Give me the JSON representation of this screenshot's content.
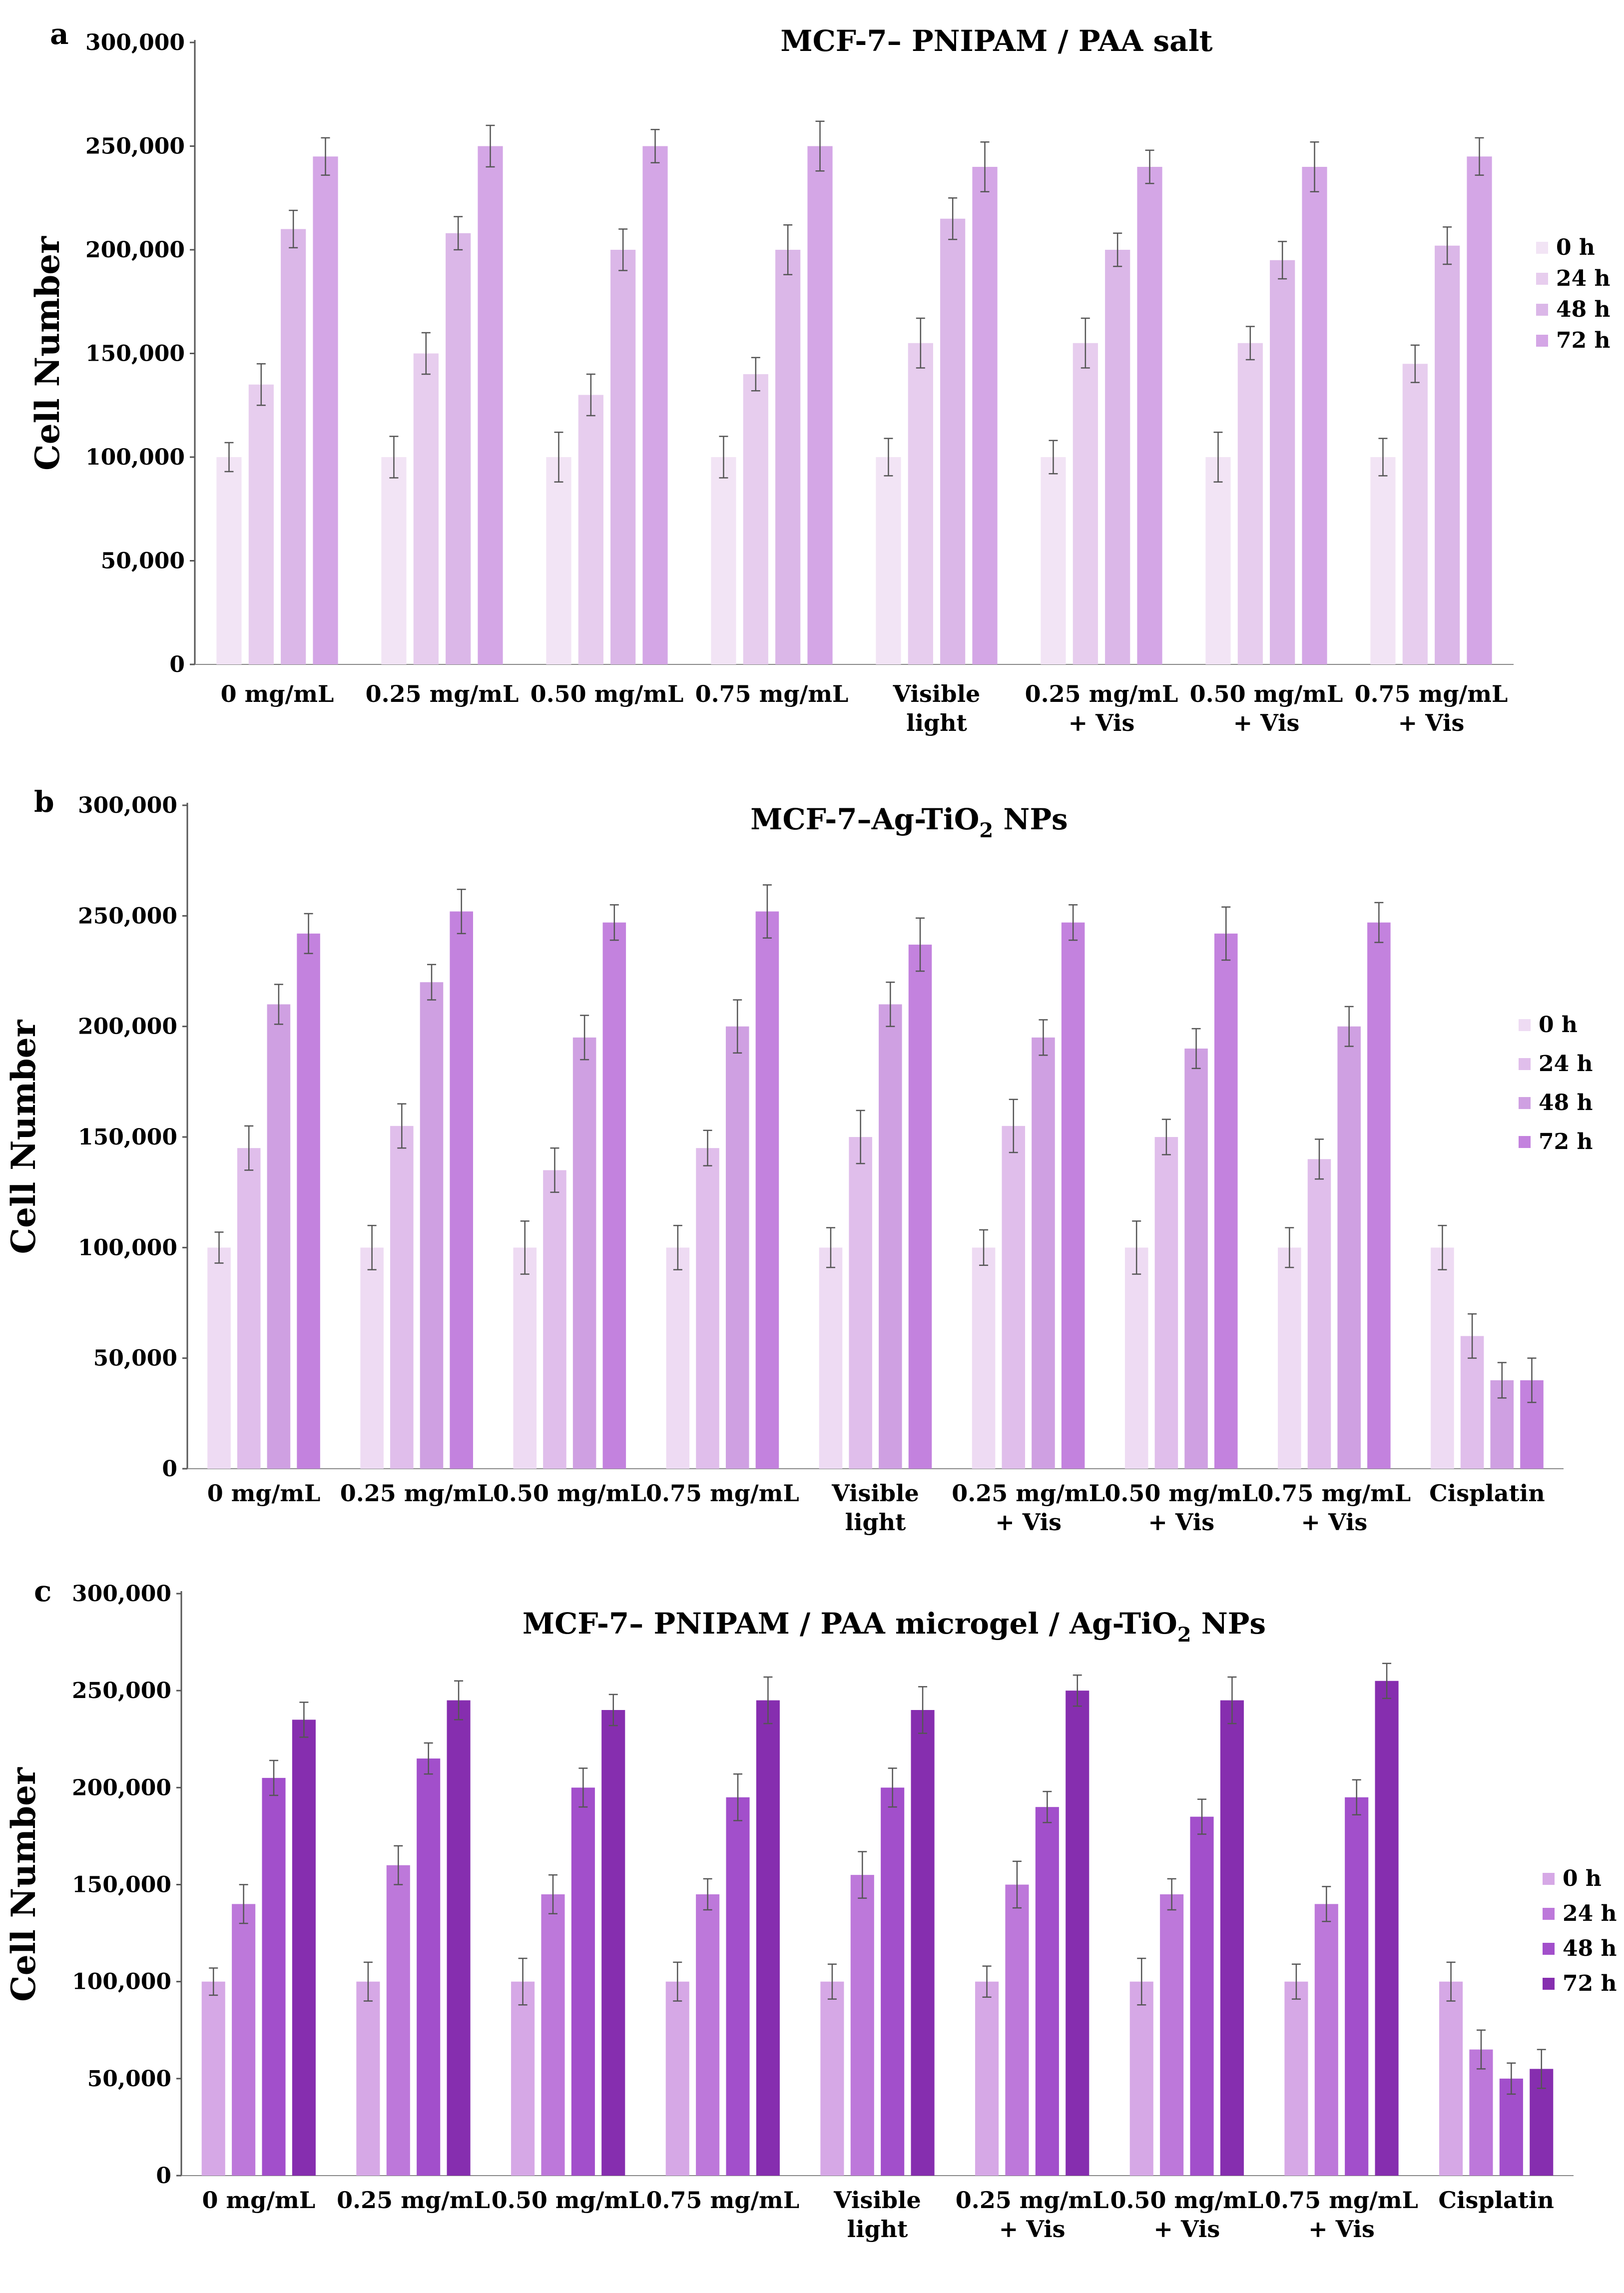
{
  "charts": [
    {
      "panel_label": "a",
      "title_parts": [
        {
          "text": "MCF-7– PNIPAM / PAA salt"
        }
      ],
      "chart_data": {
        "type": "bar",
        "title": "MCF-7– PNIPAM / PAA salt",
        "ylabel": "Cell Number",
        "xlabel": "",
        "ylim": [
          0,
          300000
        ],
        "y_ticks": [
          "0",
          "50,000",
          "100,000",
          "150,000",
          "200,000",
          "250,000",
          "300,000"
        ],
        "categories": [
          [
            "0 mg/mL"
          ],
          [
            "0.25 mg/mL"
          ],
          [
            "0.50 mg/mL"
          ],
          [
            "0.75 mg/mL"
          ],
          [
            "Visible",
            "light"
          ],
          [
            "0.25 mg/mL",
            "+ Vis"
          ],
          [
            "0.50 mg/mL",
            "+ Vis"
          ],
          [
            "0.75 mg/mL",
            "+ Vis"
          ]
        ],
        "legend_position": "right",
        "series": [
          {
            "name": "0 h",
            "color": "#F2E4F5",
            "values": [
              100000,
              100000,
              100000,
              100000,
              100000,
              100000,
              100000,
              100000
            ],
            "errors": [
              7000,
              10000,
              12000,
              10000,
              9000,
              8000,
              12000,
              9000
            ]
          },
          {
            "name": "24 h",
            "color": "#E7CDEE",
            "values": [
              135000,
              150000,
              130000,
              140000,
              155000,
              155000,
              155000,
              145000
            ],
            "errors": [
              10000,
              10000,
              10000,
              8000,
              12000,
              12000,
              8000,
              9000
            ]
          },
          {
            "name": "48 h",
            "color": "#DBB7E8",
            "values": [
              210000,
              208000,
              200000,
              200000,
              215000,
              200000,
              195000,
              202000
            ],
            "errors": [
              9000,
              8000,
              10000,
              12000,
              10000,
              8000,
              9000,
              9000
            ]
          },
          {
            "name": "72 h",
            "color": "#D4A6E6",
            "values": [
              245000,
              250000,
              250000,
              250000,
              240000,
              240000,
              240000,
              245000
            ],
            "errors": [
              9000,
              10000,
              8000,
              12000,
              12000,
              8000,
              12000,
              9000
            ]
          }
        ]
      }
    },
    {
      "panel_label": "b",
      "title_parts": [
        {
          "text": "MCF-7–Ag-TiO"
        },
        {
          "text": "2",
          "sub": true
        },
        {
          "text": " NPs"
        }
      ],
      "chart_data": {
        "type": "bar",
        "title": "MCF-7–Ag-TiO2 NPs",
        "ylabel": "Cell Number",
        "xlabel": "",
        "ylim": [
          0,
          300000
        ],
        "y_ticks": [
          "0",
          "50,000",
          "100,000",
          "150,000",
          "200,000",
          "250,000",
          "300,000"
        ],
        "categories": [
          [
            "0 mg/mL"
          ],
          [
            "0.25 mg/mL"
          ],
          [
            "0.50 mg/mL"
          ],
          [
            "0.75 mg/mL"
          ],
          [
            "Visible",
            "light"
          ],
          [
            "0.25 mg/mL",
            "+ Vis"
          ],
          [
            "0.50 mg/mL",
            "+ Vis"
          ],
          [
            "0.75 mg/mL",
            "+ Vis"
          ],
          [
            "Cisplatin"
          ]
        ],
        "legend_position": "right",
        "series": [
          {
            "name": "0 h",
            "color": "#EEDBF3",
            "values": [
              100000,
              100000,
              100000,
              100000,
              100000,
              100000,
              100000,
              100000,
              100000
            ],
            "errors": [
              7000,
              10000,
              12000,
              10000,
              9000,
              8000,
              12000,
              9000,
              10000
            ]
          },
          {
            "name": "24 h",
            "color": "#E0BEEB",
            "values": [
              145000,
              155000,
              135000,
              145000,
              150000,
              155000,
              150000,
              140000,
              60000
            ],
            "errors": [
              10000,
              10000,
              10000,
              8000,
              12000,
              12000,
              8000,
              9000,
              10000
            ]
          },
          {
            "name": "48 h",
            "color": "#CFA0E2",
            "values": [
              210000,
              220000,
              195000,
              200000,
              210000,
              195000,
              190000,
              200000,
              40000
            ],
            "errors": [
              9000,
              8000,
              10000,
              12000,
              10000,
              8000,
              9000,
              9000,
              8000
            ]
          },
          {
            "name": "72 h",
            "color": "#C382DE",
            "values": [
              242000,
              252000,
              247000,
              252000,
              237000,
              247000,
              242000,
              247000,
              40000
            ],
            "errors": [
              9000,
              10000,
              8000,
              12000,
              12000,
              8000,
              12000,
              9000,
              10000
            ]
          }
        ]
      }
    },
    {
      "panel_label": "c",
      "title_parts": [
        {
          "text": "MCF-7– PNIPAM / PAA microgel / Ag-TiO"
        },
        {
          "text": "2",
          "sub": true
        },
        {
          "text": " NPs"
        }
      ],
      "chart_data": {
        "type": "bar",
        "title": "MCF-7– PNIPAM / PAA microgel / Ag-TiO2 NPs",
        "ylabel": "Cell Number",
        "xlabel": "",
        "ylim": [
          0,
          300000
        ],
        "y_ticks": [
          "0",
          "50,000",
          "100,000",
          "150,000",
          "200,000",
          "250,000",
          "300,000"
        ],
        "categories": [
          [
            "0 mg/mL"
          ],
          [
            "0.25 mg/mL"
          ],
          [
            "0.50 mg/mL"
          ],
          [
            "0.75 mg/mL"
          ],
          [
            "Visible",
            "light"
          ],
          [
            "0.25 mg/mL",
            "+ Vis"
          ],
          [
            "0.50 mg/mL",
            "+ Vis"
          ],
          [
            "0.75 mg/mL",
            "+ Vis"
          ],
          [
            "Cisplatin"
          ]
        ],
        "legend_position": "right",
        "series": [
          {
            "name": "0 h",
            "color": "#D6A8E6",
            "values": [
              100000,
              100000,
              100000,
              100000,
              100000,
              100000,
              100000,
              100000,
              100000
            ],
            "errors": [
              7000,
              10000,
              12000,
              10000,
              9000,
              8000,
              12000,
              9000,
              10000
            ]
          },
          {
            "name": "24 h",
            "color": "#BD78DA",
            "values": [
              140000,
              160000,
              145000,
              145000,
              155000,
              150000,
              145000,
              140000,
              65000
            ],
            "errors": [
              10000,
              10000,
              10000,
              8000,
              12000,
              12000,
              8000,
              9000,
              10000
            ]
          },
          {
            "name": "48 h",
            "color": "#A24FCB",
            "values": [
              205000,
              215000,
              200000,
              195000,
              200000,
              190000,
              185000,
              195000,
              50000
            ],
            "errors": [
              9000,
              8000,
              10000,
              12000,
              10000,
              8000,
              9000,
              9000,
              8000
            ]
          },
          {
            "name": "72 h",
            "color": "#862EAF",
            "values": [
              235000,
              245000,
              240000,
              245000,
              240000,
              250000,
              245000,
              255000,
              55000
            ],
            "errors": [
              9000,
              10000,
              8000,
              12000,
              12000,
              8000,
              12000,
              9000,
              10000
            ]
          }
        ]
      }
    }
  ]
}
